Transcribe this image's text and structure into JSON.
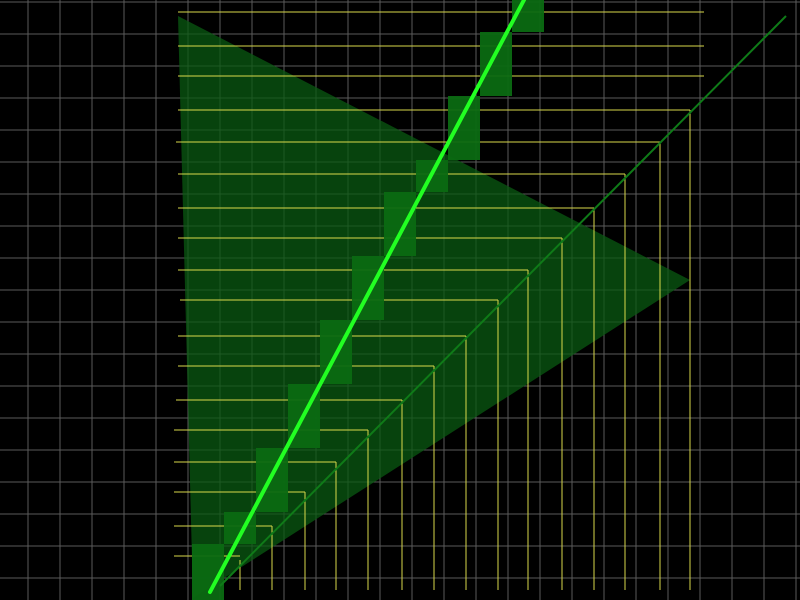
{
  "scene": {
    "background_color": "#000000",
    "grid_color": "#5a5a5a",
    "hatch_color": "#d8d84a",
    "triangle_fill": "#0a5a12",
    "pixel_fill": "#0b6a12",
    "primary_line_color": "#22ff22",
    "secondary_line_color": "#0f7a18",
    "show_grid": true
  }
}
